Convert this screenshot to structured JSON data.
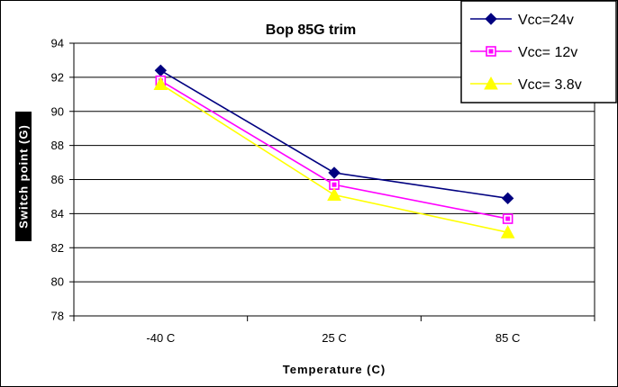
{
  "chart_data": {
    "type": "line",
    "title": "Bop 85G trim",
    "xlabel": "Temperature (C)",
    "ylabel": "Switch point (G)",
    "categories": [
      "-40 C",
      "25 C",
      "85 C"
    ],
    "ylim": [
      78,
      94
    ],
    "yticks": [
      78,
      80,
      82,
      84,
      86,
      88,
      90,
      92,
      94
    ],
    "grid": true,
    "legend_position": "top-right",
    "series": [
      {
        "name": "Vcc=24v",
        "values": [
          92.4,
          86.4,
          84.9
        ],
        "color": "#000080",
        "marker": "diamond"
      },
      {
        "name": "Vcc= 12v",
        "values": [
          91.8,
          85.7,
          83.7
        ],
        "color": "#FF00FF",
        "marker": "square"
      },
      {
        "name": "Vcc= 3.8v",
        "values": [
          91.6,
          85.1,
          82.9
        ],
        "color": "#FFFF00",
        "marker": "triangle"
      }
    ]
  }
}
